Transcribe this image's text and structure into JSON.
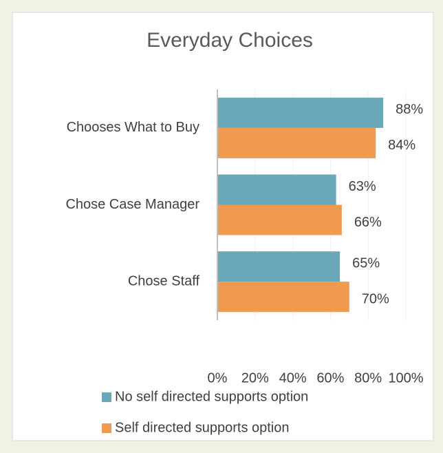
{
  "chart_data": {
    "type": "bar",
    "orientation": "horizontal",
    "title": "Everyday Choices",
    "categories": [
      "Chooses What to Buy",
      "Chose Case Manager",
      "Chose Staff"
    ],
    "series": [
      {
        "name": "No self directed supports option",
        "color": "#6aa8b9",
        "values": [
          88,
          63,
          65
        ],
        "value_labels": [
          "88%",
          "63%",
          "65%"
        ]
      },
      {
        "name": "Self directed supports option",
        "color": "#f09a50",
        "values": [
          84,
          66,
          70
        ],
        "value_labels": [
          "84%",
          "66%",
          "70%"
        ]
      }
    ],
    "xlim": [
      0,
      100
    ],
    "xticks": [
      {
        "value": 0,
        "label": "0%"
      },
      {
        "value": 20,
        "label": "20%"
      },
      {
        "value": 40,
        "label": "40%"
      },
      {
        "value": 60,
        "label": "60%"
      },
      {
        "value": 80,
        "label": "80%"
      },
      {
        "value": 100,
        "label": "100%"
      }
    ],
    "grid": true,
    "legend": "bottom"
  }
}
